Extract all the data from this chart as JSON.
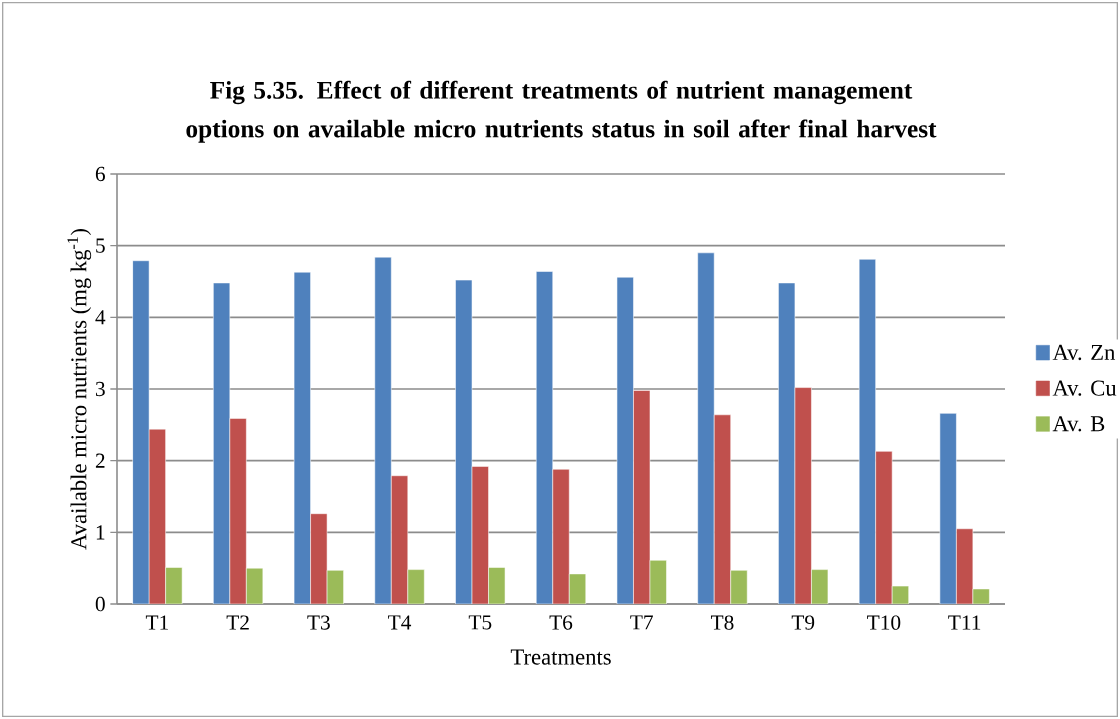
{
  "chart_data": {
    "type": "bar",
    "title": "Fig 5.35. Effect of different treatments of nutrient management options on available micro nutrients status in soil after final harvest",
    "xlabel": "Treatments",
    "ylabel": "Available micro nutrients (mg kg$^{-1}$)",
    "categories": [
      "T1",
      "T2",
      "T3",
      "T4",
      "T5",
      "T6",
      "T7",
      "T8",
      "T9",
      "T10",
      "T11"
    ],
    "series": [
      {
        "name": "Av. Zn",
        "color": "#4f81bd",
        "values": [
          4.79,
          4.48,
          4.63,
          4.84,
          4.52,
          4.64,
          4.56,
          4.9,
          4.48,
          4.81,
          2.66
        ]
      },
      {
        "name": "Av. Cu",
        "color": "#c0504d",
        "values": [
          2.44,
          2.59,
          1.26,
          1.79,
          1.92,
          1.88,
          2.98,
          2.64,
          3.02,
          2.13,
          1.05
        ]
      },
      {
        "name": "Av. B",
        "color": "#9bbb59",
        "values": [
          0.51,
          0.5,
          0.47,
          0.48,
          0.51,
          0.42,
          0.61,
          0.47,
          0.48,
          0.25,
          0.21
        ]
      }
    ],
    "ylim": [
      0,
      6
    ],
    "yticks": [
      0,
      1,
      2,
      3,
      4,
      5,
      6
    ],
    "grid": "y",
    "legend": "right"
  }
}
